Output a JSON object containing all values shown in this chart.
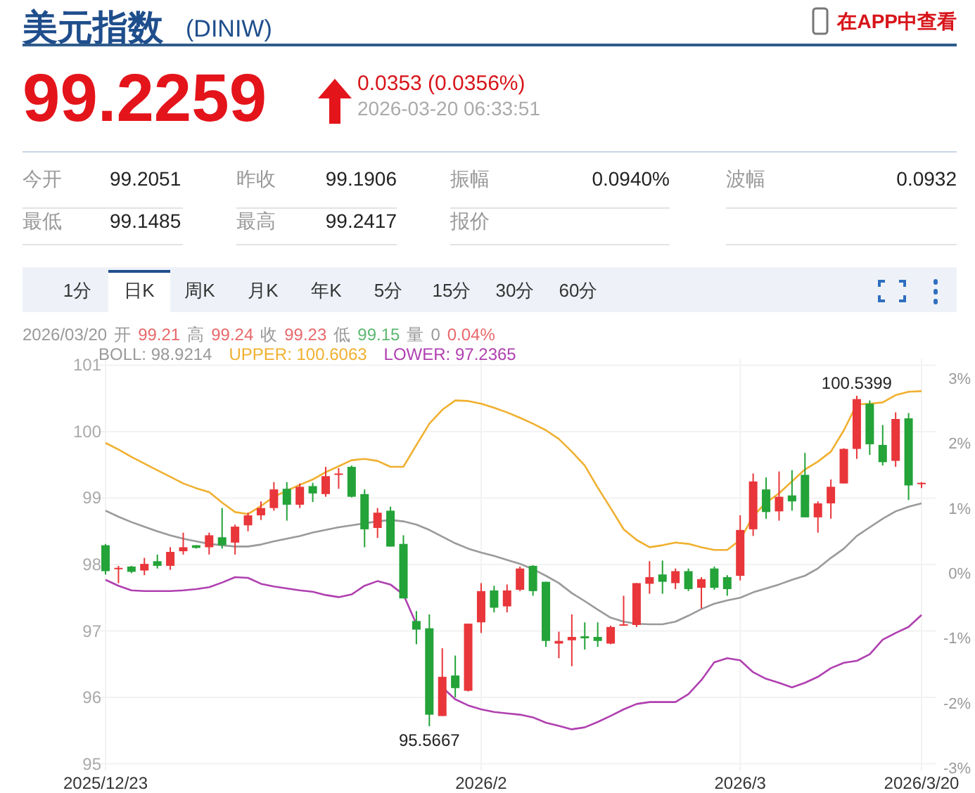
{
  "chart_data": [
    {
      "type": "other",
      "title": "美元指数",
      "subtitle": "(DINIW)",
      "annotations": [
        "在APP中查看",
        "99.2259",
        "0.0353 (0.0356%)",
        "2026-03-20 06:33:51",
        "今开",
        "99.2051",
        "昨收",
        "99.1906",
        "振幅",
        "0.0940%",
        "波幅",
        "0.0932",
        "最低",
        "99.1485",
        "最高",
        "99.2417",
        "报价",
        "1分",
        "日K",
        "周K",
        "月K",
        "年K",
        "5分",
        "15分",
        "30分",
        "60分"
      ]
    },
    {
      "type": "candlestick",
      "categories": [
        "2025/12/23",
        null,
        null,
        null,
        null,
        null,
        null,
        null,
        null,
        null,
        null,
        null,
        null,
        null,
        null,
        null,
        null,
        null,
        null,
        null,
        null,
        null,
        null,
        null,
        null,
        null,
        null,
        null,
        null,
        "2026/2",
        null,
        null,
        null,
        null,
        null,
        null,
        null,
        null,
        null,
        null,
        null,
        null,
        null,
        null,
        null,
        null,
        null,
        null,
        null,
        "2026/3",
        null,
        null,
        null,
        null,
        null,
        null,
        null,
        null,
        null,
        null,
        null,
        null,
        null,
        "2026/3/20"
      ],
      "ohlc": [
        [
          98.29,
          98.31,
          97.85,
          97.9
        ],
        [
          97.94,
          97.98,
          97.72,
          97.95
        ],
        [
          97.97,
          97.98,
          97.87,
          97.89
        ],
        [
          97.91,
          98.1,
          97.84,
          98.01
        ],
        [
          98.05,
          98.15,
          97.94,
          97.98
        ],
        [
          97.98,
          98.26,
          97.92,
          98.19
        ],
        [
          98.2,
          98.48,
          98.15,
          98.26
        ],
        [
          98.29,
          98.29,
          98.24,
          98.25
        ],
        [
          98.26,
          98.48,
          98.15,
          98.44
        ],
        [
          98.41,
          98.85,
          98.24,
          98.29
        ],
        [
          98.33,
          98.6,
          98.15,
          98.57
        ],
        [
          98.59,
          98.78,
          98.5,
          98.74
        ],
        [
          98.74,
          98.95,
          98.67,
          98.85
        ],
        [
          98.85,
          99.24,
          98.81,
          99.13
        ],
        [
          99.14,
          99.24,
          98.66,
          98.9
        ],
        [
          98.9,
          99.22,
          98.85,
          99.17
        ],
        [
          99.18,
          99.23,
          98.94,
          99.07
        ],
        [
          99.06,
          99.47,
          99.02,
          99.33
        ],
        [
          99.35,
          99.45,
          99.14,
          99.37
        ],
        [
          99.47,
          99.49,
          99.01,
          99.02
        ],
        [
          99.06,
          99.13,
          98.26,
          98.53
        ],
        [
          98.55,
          98.85,
          98.4,
          98.78
        ],
        [
          98.81,
          98.87,
          98.27,
          98.27
        ],
        [
          98.31,
          98.44,
          97.49,
          97.49
        ],
        [
          97.15,
          97.3,
          96.8,
          97.02
        ],
        [
          97.04,
          97.25,
          95.5667,
          95.74
        ],
        [
          95.72,
          96.74,
          95.72,
          96.31
        ],
        [
          96.33,
          96.63,
          96.0,
          96.14
        ],
        [
          96.1,
          97.11,
          96.09,
          97.11
        ],
        [
          97.13,
          97.72,
          96.97,
          97.6
        ],
        [
          97.61,
          97.68,
          97.28,
          97.35
        ],
        [
          97.37,
          97.7,
          97.28,
          97.61
        ],
        [
          97.62,
          97.97,
          97.6,
          97.94
        ],
        [
          97.98,
          97.99,
          97.53,
          97.6
        ],
        [
          97.74,
          97.74,
          96.76,
          96.85
        ],
        [
          96.81,
          96.99,
          96.59,
          96.85
        ],
        [
          96.86,
          97.25,
          96.47,
          96.91
        ],
        [
          96.92,
          97.13,
          96.72,
          96.89
        ],
        [
          96.91,
          97.13,
          96.76,
          96.85
        ],
        [
          96.81,
          97.08,
          96.8,
          97.06
        ],
        [
          97.08,
          97.53,
          97.08,
          97.1
        ],
        [
          97.09,
          97.72,
          97.06,
          97.72
        ],
        [
          97.71,
          98.05,
          97.56,
          97.81
        ],
        [
          97.85,
          98.06,
          97.56,
          97.74
        ],
        [
          97.72,
          97.94,
          97.63,
          97.9
        ],
        [
          97.9,
          97.94,
          97.6,
          97.63
        ],
        [
          97.65,
          97.81,
          97.34,
          97.78
        ],
        [
          97.94,
          97.97,
          97.62,
          97.65
        ],
        [
          97.81,
          97.84,
          97.53,
          97.63
        ],
        [
          97.83,
          98.74,
          97.76,
          98.52
        ],
        [
          98.53,
          99.37,
          98.43,
          99.25
        ],
        [
          99.13,
          99.31,
          98.69,
          98.79
        ],
        [
          98.8,
          99.4,
          98.66,
          99.02
        ],
        [
          99.04,
          99.42,
          98.81,
          98.95
        ],
        [
          99.35,
          99.68,
          98.71,
          98.71
        ],
        [
          98.71,
          98.95,
          98.48,
          98.92
        ],
        [
          98.92,
          99.28,
          98.69,
          99.17
        ],
        [
          99.22,
          99.75,
          99.22,
          99.74
        ],
        [
          99.74,
          100.5399,
          99.59,
          100.49
        ],
        [
          100.42,
          100.47,
          99.65,
          99.81
        ],
        [
          99.8,
          100.1,
          99.49,
          99.54
        ],
        [
          99.56,
          100.29,
          99.47,
          100.19
        ],
        [
          100.2,
          100.28,
          98.97,
          99.19
        ],
        [
          99.21,
          99.24,
          99.15,
          99.23
        ]
      ],
      "series": [
        {
          "type": "line",
          "color": "#f0b030",
          "values": [
            99.83,
            99.73,
            99.62,
            99.52,
            99.42,
            99.32,
            99.22,
            99.15,
            99.09,
            98.93,
            98.79,
            98.76,
            98.88,
            99.02,
            99.11,
            99.2,
            99.28,
            99.39,
            99.48,
            99.57,
            99.59,
            99.56,
            99.47,
            99.47,
            99.8,
            100.12,
            100.33,
            100.47,
            100.46,
            100.42,
            100.36,
            100.29,
            100.21,
            100.12,
            100.02,
            99.89,
            99.7,
            99.49,
            99.16,
            98.85,
            98.53,
            98.37,
            98.26,
            98.29,
            98.33,
            98.31,
            98.26,
            98.22,
            98.22,
            98.37,
            98.73,
            98.93,
            99.07,
            99.25,
            99.43,
            99.55,
            99.7,
            100.02,
            100.41,
            100.42,
            100.44,
            100.55,
            100.6,
            100.61
          ]
        },
        {
          "type": "line",
          "color": "#9a9a9a",
          "values": [
            98.81,
            98.72,
            98.64,
            98.57,
            98.5,
            98.44,
            98.39,
            98.35,
            98.31,
            98.29,
            98.27,
            98.27,
            98.3,
            98.35,
            98.39,
            98.43,
            98.48,
            98.52,
            98.56,
            98.59,
            98.62,
            98.65,
            98.67,
            98.65,
            98.6,
            98.52,
            98.42,
            98.32,
            98.24,
            98.18,
            98.13,
            98.07,
            98.01,
            97.93,
            97.83,
            97.72,
            97.57,
            97.45,
            97.32,
            97.2,
            97.14,
            97.11,
            97.1,
            97.1,
            97.14,
            97.23,
            97.33,
            97.41,
            97.46,
            97.5,
            97.58,
            97.64,
            97.7,
            97.77,
            97.83,
            97.94,
            98.1,
            98.24,
            98.43,
            98.56,
            98.69,
            98.8,
            98.87,
            98.92
          ]
        },
        {
          "type": "line",
          "color": "#b040b0",
          "values": [
            97.77,
            97.68,
            97.61,
            97.6,
            97.6,
            97.6,
            97.61,
            97.63,
            97.66,
            97.73,
            97.81,
            97.8,
            97.71,
            97.67,
            97.64,
            97.61,
            97.59,
            97.54,
            97.51,
            97.55,
            97.68,
            97.75,
            97.7,
            97.55,
            97.1,
            null,
            96.15,
            95.97,
            95.88,
            95.82,
            95.78,
            95.76,
            95.74,
            95.7,
            95.62,
            95.57,
            95.52,
            95.55,
            95.63,
            95.72,
            95.82,
            95.9,
            95.93,
            95.93,
            95.93,
            96.05,
            96.26,
            96.53,
            96.59,
            96.56,
            96.38,
            96.28,
            96.22,
            96.15,
            96.22,
            96.31,
            96.44,
            96.52,
            96.55,
            96.65,
            96.87,
            96.97,
            97.06,
            97.24
          ]
        }
      ],
      "ylim": [
        94.9,
        101.1
      ],
      "yticks": [
        95,
        96,
        97,
        98,
        99,
        100,
        101
      ],
      "y2lim": [
        -3.04,
        3.3
      ],
      "y2ticks": [
        {
          "value": -3,
          "label": "-3%"
        },
        {
          "value": -2,
          "label": "-2%"
        },
        {
          "value": -1,
          "label": "-1%"
        },
        {
          "value": 0,
          "label": "0%"
        },
        {
          "value": 1,
          "label": "1%"
        },
        {
          "value": 2,
          "label": "2%"
        },
        {
          "value": 3,
          "label": "3%"
        }
      ],
      "grid": true,
      "annotations": [
        "2026/03/20",
        "开",
        "99.21",
        "高",
        "99.24",
        "收",
        "99.23",
        "低",
        "99.15",
        "量",
        "0",
        "0.04%",
        "BOLL: 98.9214",
        "UPPER: 100.6063",
        "LOWER: 97.2365",
        {
          "text": "95.5667",
          "y": 95.5667
        },
        {
          "text": "100.5399",
          "y": 100.5399
        }
      ]
    }
  ]
}
